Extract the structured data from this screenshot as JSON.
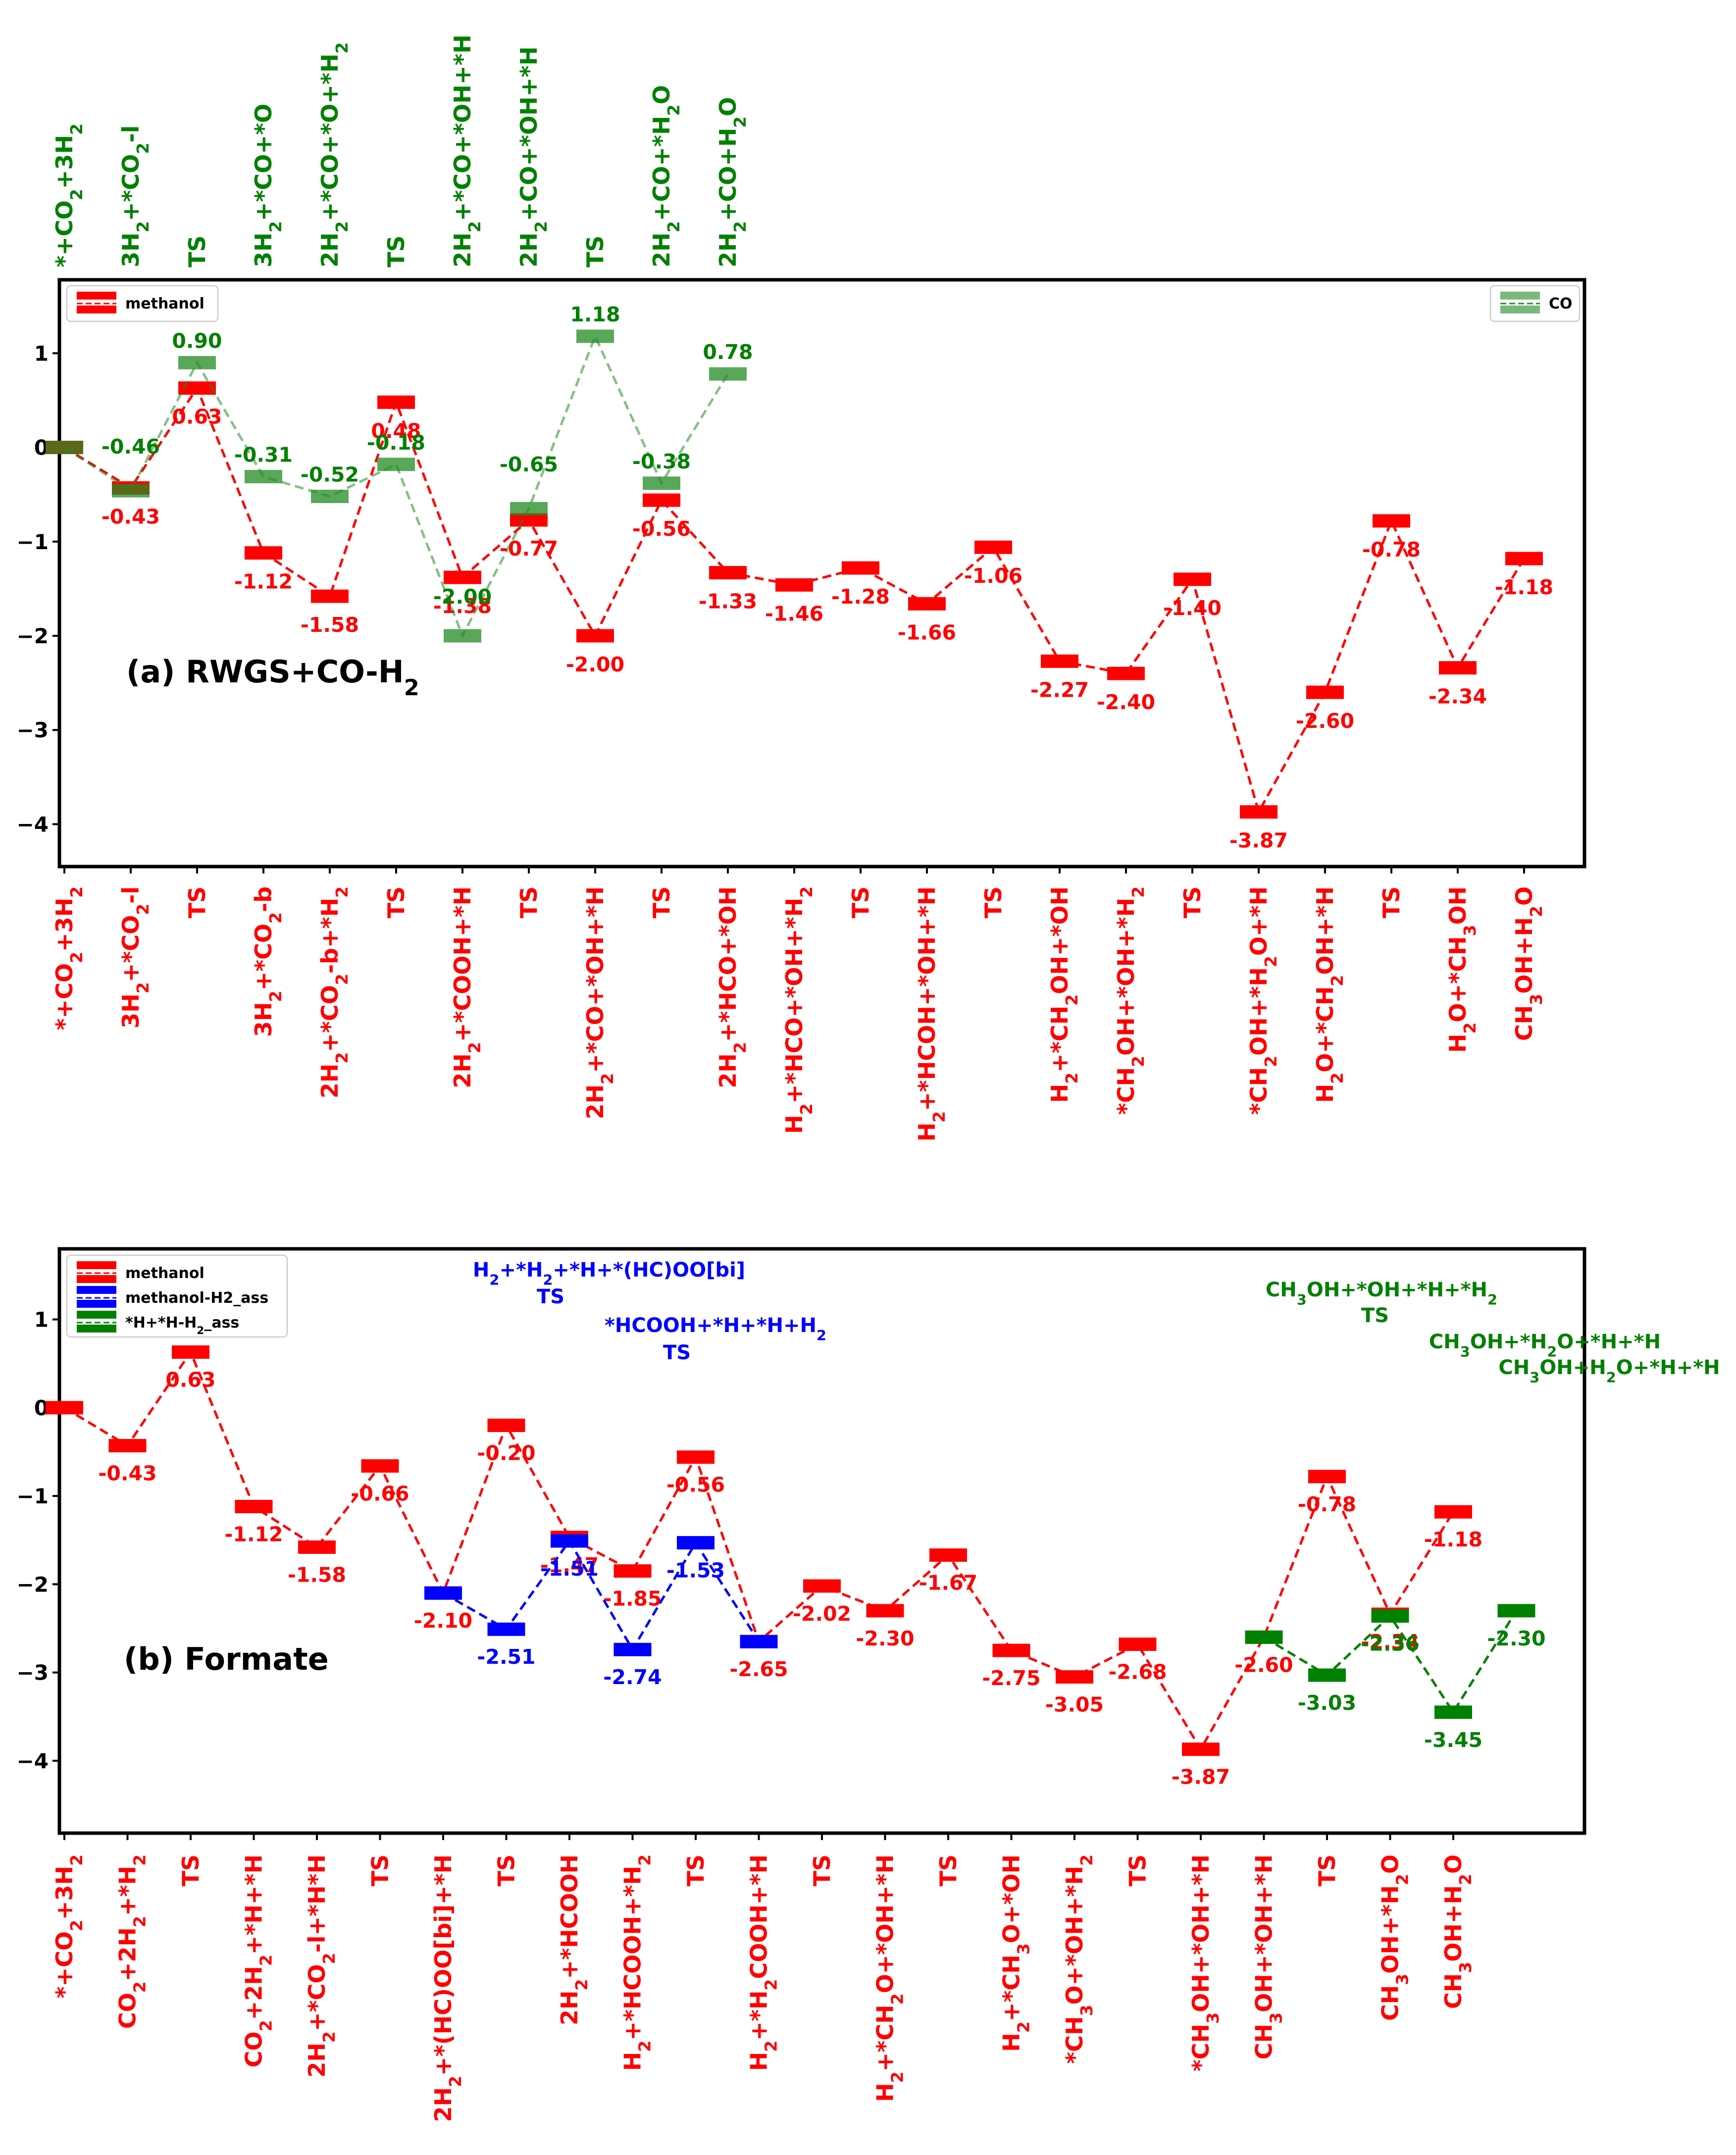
{
  "chart_data": [
    {
      "type": "line",
      "title": "(a) RWGS+CO-H₂",
      "xlabel": "",
      "ylabel": "",
      "ylim": [
        -4.45,
        1.78
      ],
      "yticks": [
        "1",
        "0",
        "−1",
        "−2",
        "−3",
        "−4"
      ],
      "ytick_values": [
        1,
        0,
        -1,
        -2,
        -3,
        -4
      ],
      "grid": false,
      "legend_placement": [
        "upper left",
        "upper right"
      ],
      "bottom_categories": [
        "*+CO₂+3H₂",
        "3H₂+*CO₂-l",
        "TS",
        "3H₂+*CO₂-b",
        "2H₂+*CO₂-b+*H₂",
        "TS",
        "2H₂+*COOH+*H",
        "TS",
        "2H₂+*CO+*OH+*H",
        "TS",
        "2H₂+*HCO+*OH",
        "H₂+*HCO+*OH+*H₂",
        "TS",
        "H₂+*HCOH+*OH+*H",
        "TS",
        "H₂+*CH₂OH+*OH",
        "*CH₂OH+*OH+*H₂",
        "TS",
        "*CH₂OH+*H₂O+*H",
        "H₂O+*CH₂OH+*H",
        "TS",
        "H₂O+*CH₃OH",
        "CH₃OH+H₂O"
      ],
      "top_categories": [
        "*+CO₂+3H₂",
        "3H₂+*CO₂-l",
        "TS",
        "3H₂+*CO+*O",
        "2H₂+*CO+*O+*H₂",
        "TS",
        "2H₂+*CO+*OH+*H",
        "2H₂+CO+*OH+*H",
        "TS",
        "2H₂+CO+*H₂O",
        "2H₂+CO+H₂O"
      ],
      "series": [
        {
          "name": "methanol",
          "color": "#ff0000",
          "x": [
            0,
            1,
            2,
            3,
            4,
            5,
            6,
            7,
            8,
            9,
            10,
            11,
            12,
            13,
            14,
            15,
            16,
            17,
            18,
            19,
            20,
            21,
            22
          ],
          "values": [
            0,
            -0.43,
            0.63,
            -1.12,
            -1.58,
            0.48,
            -1.38,
            -0.77,
            -2.0,
            -0.56,
            -1.33,
            -1.46,
            -1.28,
            -1.66,
            -1.06,
            -2.27,
            -2.4,
            -1.4,
            -3.87,
            -2.6,
            -0.78,
            -2.34,
            -1.18
          ],
          "labels": [
            "",
            "-0.43",
            "0.63",
            "-1.12",
            "-1.58",
            "0.48",
            "-1.38",
            "-0.77",
            "-2.00",
            "-0.56",
            "-1.33",
            "-1.46",
            "-1.28",
            "-1.66",
            "-1.06",
            "-2.27",
            "-2.40",
            "-1.40",
            "-3.87",
            "-2.60",
            "-0.78",
            "-2.34",
            "-1.18"
          ]
        },
        {
          "name": "CO",
          "color": "#228B22",
          "x": [
            0,
            1,
            2,
            3,
            4,
            5,
            6,
            7,
            8,
            9,
            10
          ],
          "values": [
            0,
            -0.46,
            0.9,
            -0.31,
            -0.52,
            -0.18,
            -2.0,
            -0.65,
            1.18,
            -0.38,
            0.78
          ],
          "labels": [
            "",
            "-0.46",
            "0.90",
            "-0.31",
            "-0.52",
            "-0.18",
            "-2.00",
            "-0.65",
            "1.18",
            "-0.38",
            "0.78"
          ]
        }
      ]
    },
    {
      "type": "line",
      "title": "(b) Formate",
      "xlabel": "",
      "ylabel": "",
      "ylim": [
        -4.82,
        1.8
      ],
      "yticks": [
        "1",
        "0",
        "−1",
        "−2",
        "−3",
        "−4"
      ],
      "ytick_values": [
        1,
        0,
        -1,
        -2,
        -3,
        -4
      ],
      "grid": false,
      "legend_placement": "upper left",
      "bottom_categories": [
        "*+CO₂+3H₂",
        "CO₂+2H₂+*H₂",
        "TS",
        "CO₂+2H₂+*H+*H",
        "2H₂+*CO₂-l+*H*H",
        "TS",
        "2H₂+*(HC)OO[bi]+*H",
        "TS",
        "2H₂+*HCOOH",
        "H₂+*HCOOH+*H₂",
        "TS",
        "H₂+*H₂COOH+*H",
        "TS",
        "H₂+*CH₂O+*OH+*H",
        "TS",
        "H₂+*CH₃O+*OH",
        "*CH₃O+*OH+*H₂",
        "TS",
        "*CH₃OH+*OH+*H",
        "CH₃OH+*OH+*H",
        "TS",
        "CH₃OH+*H₂O",
        "CH₃OH+H₂O"
      ],
      "annotations": [
        {
          "text": "H₂+*H₂+*H+*(HC)OO[bi]",
          "color": "#0000ff"
        },
        {
          "text": "TS",
          "color": "#0000ff"
        },
        {
          "text": "*HCOOH+*H+*H+H₂",
          "color": "#0000ff"
        },
        {
          "text": "TS",
          "color": "#0000ff"
        },
        {
          "text": "CH₃OH+*OH+*H+*H₂",
          "color": "#008000"
        },
        {
          "text": "TS",
          "color": "#008000"
        },
        {
          "text": "CH₃OH+*H₂O+*H+*H",
          "color": "#008000"
        },
        {
          "text": "CH₃OH+H₂O+*H+*H",
          "color": "#008000"
        }
      ],
      "series": [
        {
          "name": "methanol",
          "color": "#ff0000",
          "x": [
            0,
            1,
            2,
            3,
            4,
            5,
            6,
            7,
            8,
            9,
            10,
            11,
            12,
            13,
            14,
            15,
            16,
            17,
            18,
            19,
            20,
            21,
            22
          ],
          "values": [
            0,
            -0.43,
            0.63,
            -1.12,
            -1.58,
            -0.66,
            -2.1,
            -0.2,
            -1.47,
            -1.85,
            -0.56,
            -2.65,
            -2.02,
            -2.3,
            -1.67,
            -2.75,
            -3.05,
            -2.68,
            -3.87,
            -2.6,
            -0.78,
            -2.34,
            -1.18
          ],
          "labels": [
            "",
            "-0.43",
            "0.63",
            "-1.12",
            "-1.58",
            "-0.66",
            "-2.10",
            "-0.20",
            "-1.47",
            "-1.85",
            "-0.56",
            "-2.65",
            "-2.02",
            "-2.30",
            "-1.67",
            "-2.75",
            "-3.05",
            "-2.68",
            "-3.87",
            "-2.60",
            "-0.78",
            "-2.34",
            "-1.18"
          ]
        },
        {
          "name": "methanol-H2_ass",
          "color": "#0000ff",
          "x": [
            6,
            7,
            8,
            9,
            10,
            11
          ],
          "values": [
            -2.1,
            -2.51,
            -1.51,
            -2.74,
            -1.53,
            -2.65
          ],
          "labels": [
            "",
            "-2.51",
            "-1.51",
            "-2.74",
            "-1.53",
            ""
          ]
        },
        {
          "name": "*H+*H-H₂_ass",
          "color": "#008000",
          "x": [
            19,
            20,
            21,
            22,
            23
          ],
          "values": [
            -2.6,
            -3.03,
            -2.36,
            -3.45,
            -2.3
          ],
          "labels": [
            "",
            "-3.03",
            "-2.36",
            "-3.45",
            "-2.30"
          ]
        }
      ]
    }
  ]
}
